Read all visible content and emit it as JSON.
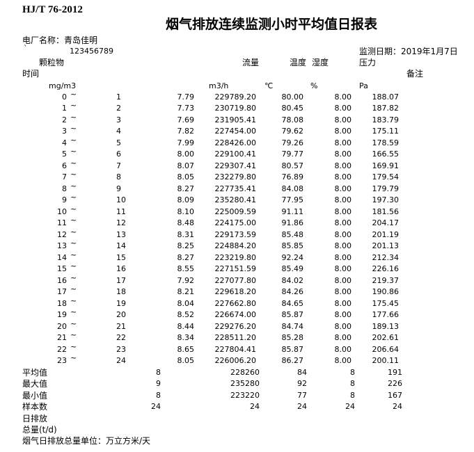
{
  "header": {
    "standard": "HJ/T 76-2012",
    "title": "烟气排放连续监测小时平均值日报表",
    "plant": "电厂名称：青岛佳明",
    "mark": "`",
    "code": "123456789",
    "date": "监测日期：2019年1月7日"
  },
  "table": {
    "columns": {
      "particulate": "颗粒物",
      "flow": "流量",
      "temperature": "温度",
      "humidity": "湿度",
      "pressure": "压力",
      "time": "时间",
      "remark": "备注"
    },
    "units": {
      "particulate": "mg/m3",
      "flow": "m3/h",
      "temperature": "℃",
      "humidity": "%",
      "pressure": "Pa"
    },
    "rows": [
      [
        "0",
        "~",
        "1",
        "7.79",
        "229789.20",
        "80.00",
        "8.00",
        "188.07"
      ],
      [
        "1",
        "~",
        "2",
        "7.73",
        "230719.80",
        "80.45",
        "8.00",
        "187.82"
      ],
      [
        "2",
        "~",
        "3",
        "7.69",
        "231905.41",
        "78.08",
        "8.00",
        "183.79"
      ],
      [
        "3",
        "~",
        "4",
        "7.82",
        "227454.00",
        "79.62",
        "8.00",
        "175.11"
      ],
      [
        "4",
        "~",
        "5",
        "7.99",
        "228426.00",
        "79.26",
        "8.00",
        "178.59"
      ],
      [
        "5",
        "~",
        "6",
        "8.00",
        "229100.41",
        "79.77",
        "8.00",
        "166.55"
      ],
      [
        "6",
        "~",
        "7",
        "8.07",
        "229307.41",
        "80.57",
        "8.00",
        "169.91"
      ],
      [
        "7",
        "~",
        "8",
        "8.05",
        "232279.80",
        "76.89",
        "8.00",
        "179.54"
      ],
      [
        "8",
        "~",
        "9",
        "8.27",
        "227735.41",
        "84.08",
        "8.00",
        "179.79"
      ],
      [
        "9",
        "~",
        "10",
        "8.09",
        "235280.41",
        "77.95",
        "8.00",
        "197.30"
      ],
      [
        "10",
        "~",
        "11",
        "8.10",
        "225009.59",
        "91.11",
        "8.00",
        "181.56"
      ],
      [
        "11",
        "~",
        "12",
        "8.48",
        "224175.00",
        "91.86",
        "8.00",
        "204.17"
      ],
      [
        "12",
        "~",
        "13",
        "8.31",
        "229173.59",
        "85.48",
        "8.00",
        "201.19"
      ],
      [
        "13",
        "~",
        "14",
        "8.25",
        "224884.20",
        "85.85",
        "8.00",
        "201.13"
      ],
      [
        "14",
        "~",
        "15",
        "8.27",
        "223219.80",
        "92.24",
        "8.00",
        "212.34"
      ],
      [
        "15",
        "~",
        "16",
        "8.55",
        "227151.59",
        "85.49",
        "8.00",
        "226.16"
      ],
      [
        "16",
        "~",
        "17",
        "7.92",
        "227077.80",
        "84.02",
        "8.00",
        "219.37"
      ],
      [
        "17",
        "~",
        "18",
        "8.21",
        "229618.20",
        "84.26",
        "8.00",
        "190.86"
      ],
      [
        "18",
        "~",
        "19",
        "8.04",
        "227662.80",
        "84.65",
        "8.00",
        "175.45"
      ],
      [
        "19",
        "~",
        "20",
        "8.52",
        "226674.00",
        "85.87",
        "8.00",
        "177.66"
      ],
      [
        "20",
        "~",
        "21",
        "8.44",
        "229276.20",
        "84.74",
        "8.00",
        "189.13"
      ],
      [
        "21",
        "~",
        "22",
        "8.34",
        "228511.20",
        "85.28",
        "8.00",
        "202.61"
      ],
      [
        "22",
        "~",
        "23",
        "8.65",
        "227804.41",
        "85.87",
        "8.00",
        "206.64"
      ],
      [
        "23",
        "~",
        "24",
        "8.05",
        "226006.20",
        "86.27",
        "8.00",
        "200.11"
      ]
    ]
  },
  "summary": {
    "rows": [
      [
        "平均值",
        "8",
        "228260",
        "84",
        "8",
        "191"
      ],
      [
        "最大值",
        "9",
        "235280",
        "92",
        "8",
        "226"
      ],
      [
        "最小值",
        "8",
        "223220",
        "77",
        "8",
        "167"
      ],
      [
        "样本数",
        "24",
        "24",
        "24",
        "24",
        "24"
      ],
      [
        "日排放"
      ],
      [
        "总量(t/d)"
      ]
    ],
    "unit_note": "烟气日排放总量单位：万立方米/天"
  }
}
